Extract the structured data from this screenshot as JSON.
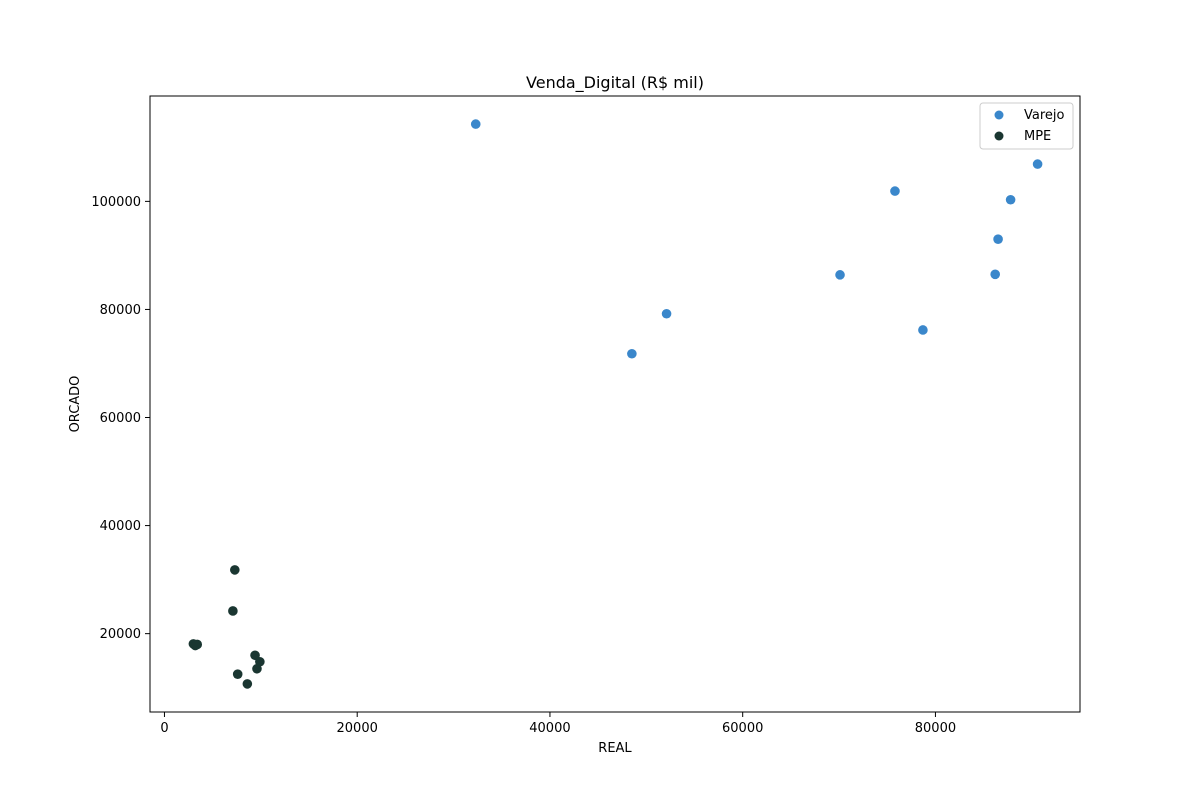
{
  "chart_data": {
    "type": "scatter",
    "title": "Venda_Digital (R$ mil)",
    "xlabel": "REAL",
    "ylabel": "ORCADO",
    "xlim": [
      -1500,
      95000
    ],
    "ylim": [
      5500,
      119500
    ],
    "xticks": [
      0,
      20000,
      40000,
      60000,
      80000
    ],
    "yticks": [
      20000,
      40000,
      60000,
      80000,
      100000
    ],
    "grid": false,
    "legend_position": "top-right",
    "series": [
      {
        "name": "Varejo",
        "color": "#3a87cb",
        "points": [
          {
            "x": 32300,
            "y": 114300
          },
          {
            "x": 48500,
            "y": 71800
          },
          {
            "x": 52100,
            "y": 79200
          },
          {
            "x": 70100,
            "y": 86400
          },
          {
            "x": 75800,
            "y": 101900
          },
          {
            "x": 78700,
            "y": 76200
          },
          {
            "x": 86200,
            "y": 86500
          },
          {
            "x": 86500,
            "y": 93000
          },
          {
            "x": 87800,
            "y": 100300
          },
          {
            "x": 90600,
            "y": 106900
          }
        ]
      },
      {
        "name": "MPE",
        "color": "#1a3631",
        "points": [
          {
            "x": 3000,
            "y": 18100
          },
          {
            "x": 3200,
            "y": 17800
          },
          {
            "x": 3400,
            "y": 18000
          },
          {
            "x": 7100,
            "y": 24200
          },
          {
            "x": 7300,
            "y": 31800
          },
          {
            "x": 7600,
            "y": 12500
          },
          {
            "x": 8600,
            "y": 10700
          },
          {
            "x": 9400,
            "y": 16000
          },
          {
            "x": 9600,
            "y": 13500
          },
          {
            "x": 9900,
            "y": 14800
          }
        ]
      }
    ]
  }
}
